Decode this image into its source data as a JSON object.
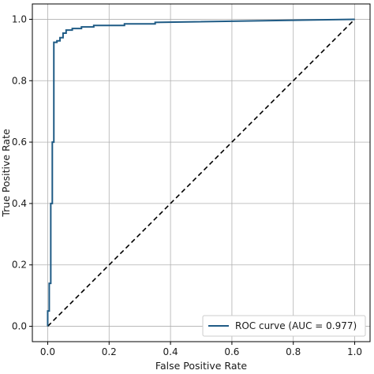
{
  "chart_data": {
    "type": "line",
    "xlabel": "False Positive Rate",
    "ylabel": "True Positive Rate",
    "xlim": [
      -0.05,
      1.05
    ],
    "ylim": [
      -0.05,
      1.05
    ],
    "xticks": [
      0.0,
      0.2,
      0.4,
      0.6,
      0.8,
      1.0
    ],
    "yticks": [
      0.0,
      0.2,
      0.4,
      0.6,
      0.8,
      1.0
    ],
    "xtick_labels": [
      "0.0",
      "0.2",
      "0.4",
      "0.6",
      "0.8",
      "1.0"
    ],
    "ytick_labels": [
      "0.0",
      "0.2",
      "0.4",
      "0.6",
      "0.8",
      "1.0"
    ],
    "grid": true,
    "legend_position": "lower-right",
    "series": [
      {
        "name": "ROC curve (AUC = 0.977)",
        "color": "#1f5b85",
        "style": "solid",
        "x": [
          0.0,
          0.0,
          0.005,
          0.005,
          0.01,
          0.01,
          0.015,
          0.015,
          0.02,
          0.02,
          0.03,
          0.03,
          0.04,
          0.04,
          0.05,
          0.05,
          0.06,
          0.06,
          0.08,
          0.08,
          0.11,
          0.11,
          0.15,
          0.15,
          0.25,
          0.25,
          0.35,
          0.35,
          1.0
        ],
        "y": [
          0.0,
          0.05,
          0.05,
          0.14,
          0.14,
          0.4,
          0.4,
          0.6,
          0.6,
          0.925,
          0.925,
          0.93,
          0.93,
          0.94,
          0.94,
          0.955,
          0.955,
          0.965,
          0.965,
          0.97,
          0.97,
          0.975,
          0.975,
          0.98,
          0.98,
          0.985,
          0.985,
          0.99,
          1.0
        ]
      }
    ],
    "reference_line": {
      "color": "#000000",
      "style": "dashed",
      "x": [
        0.0,
        1.0
      ],
      "y": [
        0.0,
        1.0
      ]
    },
    "legend": [
      {
        "label": "ROC curve (AUC = 0.977)",
        "color": "#1f5b85"
      }
    ]
  }
}
